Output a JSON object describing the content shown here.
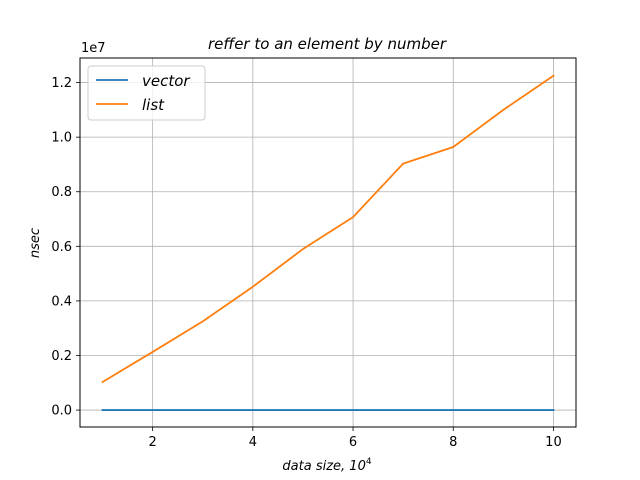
{
  "chart_data": {
    "type": "line",
    "title": "reffer to an element by number",
    "xlabel": "data size, 10",
    "xlabel_superscript": "4",
    "ylabel": "nsec",
    "y_offset_text": "1e7",
    "x": [
      1,
      2,
      3,
      4,
      5,
      6,
      7,
      8,
      9,
      10
    ],
    "xlim": [
      0.55,
      10.45
    ],
    "ylim": [
      -0.062,
      1.29
    ],
    "xticks": [
      2,
      4,
      6,
      8,
      10
    ],
    "xtick_labels": [
      "2",
      "4",
      "6",
      "8",
      "10"
    ],
    "yticks": [
      0.0,
      0.2,
      0.4,
      0.6,
      0.8,
      1.0,
      1.2
    ],
    "ytick_labels": [
      "0.0",
      "0.2",
      "0.4",
      "0.6",
      "0.8",
      "1.0",
      "1.2"
    ],
    "grid": true,
    "legend_position": "upper-left",
    "series": [
      {
        "name": "vector",
        "color": "#1f77b4",
        "values": [
          0.0,
          0.0,
          0.0,
          0.0,
          0.0,
          0.0,
          0.0,
          0.0,
          0.0,
          0.0
        ]
      },
      {
        "name": "list",
        "color": "#ff7f0e",
        "values": [
          0.103,
          0.213,
          0.325,
          0.452,
          0.59,
          0.707,
          0.903,
          0.964,
          1.1,
          1.225
        ]
      }
    ]
  }
}
